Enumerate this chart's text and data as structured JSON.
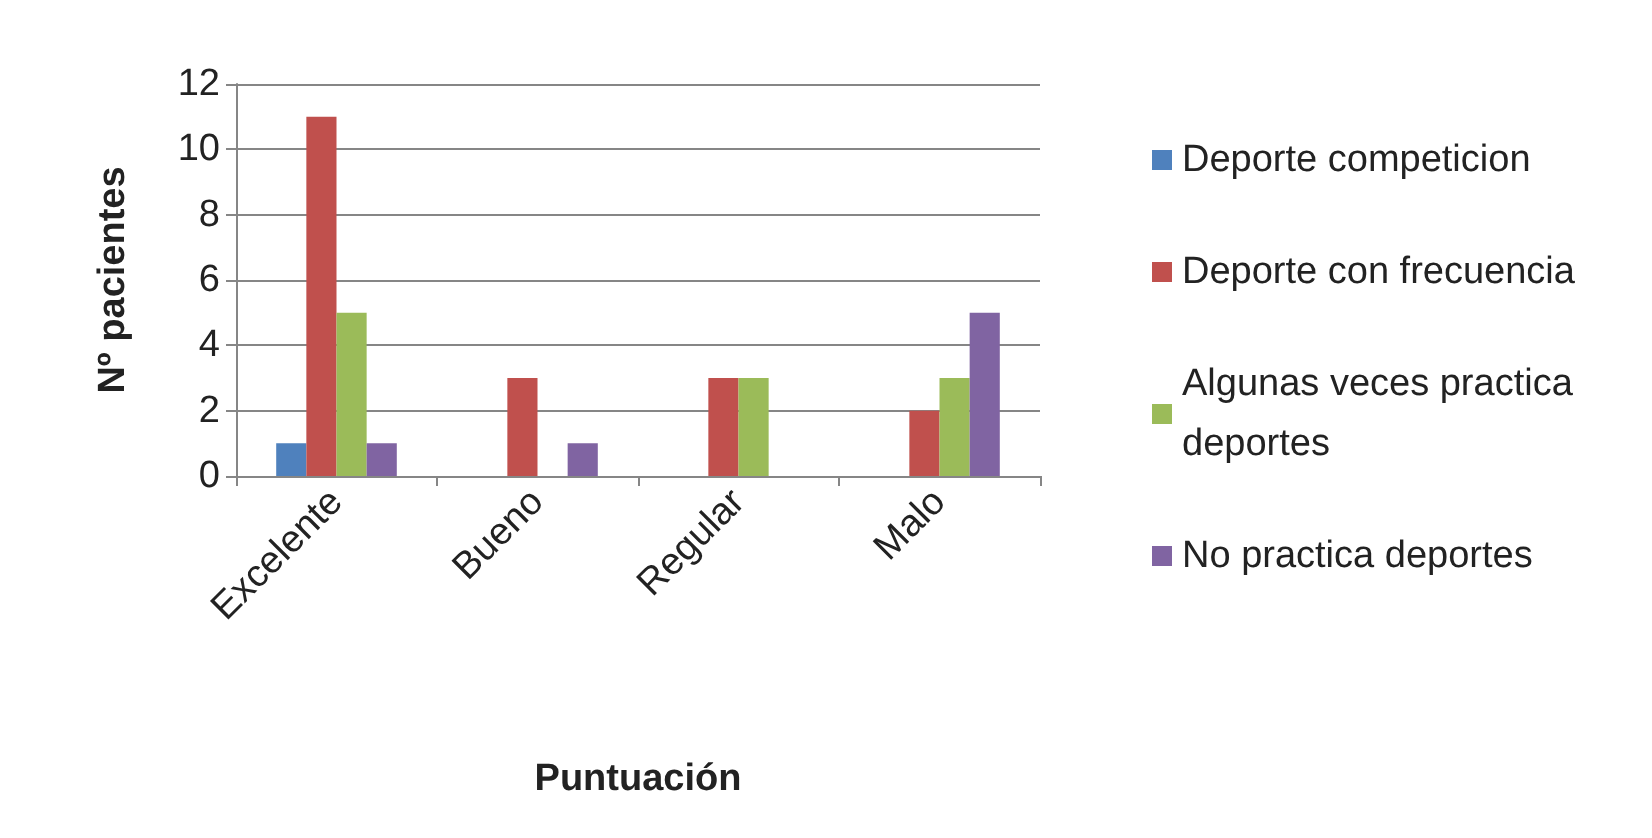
{
  "chart_data": {
    "type": "bar",
    "xlabel": "Puntuación",
    "ylabel": "Nº pacientes",
    "categories": [
      "Excelente",
      "Bueno",
      "Regular",
      "Malo"
    ],
    "series": [
      {
        "name": "Deporte competicion",
        "color": "#4f81bd",
        "values": [
          1,
          0,
          0,
          0
        ]
      },
      {
        "name": "Deporte con frecuencia",
        "color": "#c0504d",
        "values": [
          11,
          3,
          3,
          2
        ]
      },
      {
        "name": "Algunas veces practica deportes",
        "color": "#9bbb59",
        "values": [
          5,
          0,
          3,
          3
        ]
      },
      {
        "name": "No practica deportes",
        "color": "#8064a2",
        "values": [
          1,
          1,
          0,
          5
        ]
      }
    ],
    "ylim": [
      0,
      12
    ],
    "yticks": [
      0,
      2,
      4,
      6,
      8,
      10,
      12
    ],
    "grid": "y",
    "legend": "right"
  }
}
